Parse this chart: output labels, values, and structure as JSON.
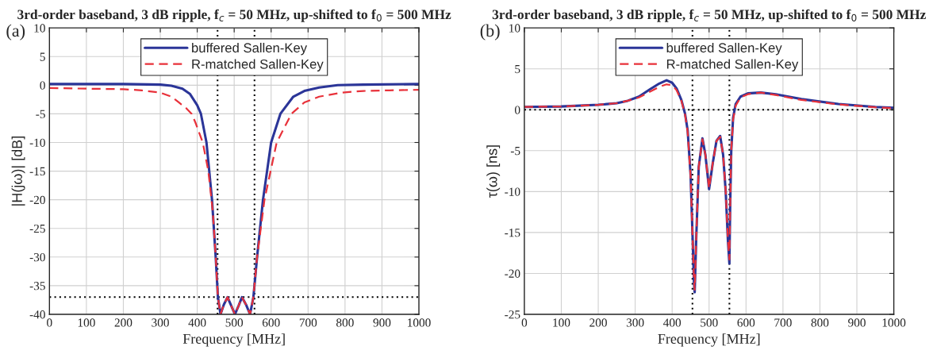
{
  "chart_data": [
    {
      "type": "line",
      "title": "3rd-order baseband, 3 dB ripple, f$_{c}$ = 50 MHz, up-shifted to f$_{0}$ = 500 MHz",
      "xlabel": "Frequency [MHz]",
      "ylabel": "|H(jω)| [dB]",
      "annotations": [
        "(a)"
      ],
      "xlim": [
        0,
        1000
      ],
      "xticks": [
        0,
        100,
        200,
        300,
        400,
        500,
        600,
        700,
        800,
        900,
        1000
      ],
      "ylim": [
        -40,
        10
      ],
      "yticks": [
        -40,
        -35,
        -30,
        -25,
        -20,
        -15,
        -10,
        -5,
        0,
        5,
        10
      ],
      "grid": true,
      "legend": "top",
      "ref_lines": [
        {
          "axis": "x",
          "value": 455,
          "color": "#000000",
          "line_style": "dotted"
        },
        {
          "axis": "x",
          "value": 555,
          "color": "#000000",
          "line_style": "dotted"
        },
        {
          "axis": "y",
          "value": -37,
          "color": "#000000",
          "line_style": "dotted"
        }
      ],
      "series": [
        {
          "name": "buffered Sallen-Key",
          "color": "#2b3598",
          "line_style": "solid",
          "x": [
            0,
            100,
            200,
            300,
            330,
            360,
            380,
            400,
            410,
            425,
            440,
            450,
            456,
            463,
            472,
            482,
            492,
            502,
            512,
            521,
            532,
            543,
            552,
            562,
            578,
            600,
            625,
            660,
            690,
            730,
            780,
            850,
            1000
          ],
          "values": [
            0.2,
            0.2,
            0.2,
            0.1,
            -0.1,
            -0.6,
            -1.5,
            -3.5,
            -5,
            -10,
            -20,
            -30,
            -37,
            -40,
            -38.3,
            -37,
            -38.5,
            -40,
            -38.5,
            -37,
            -38.3,
            -40,
            -37,
            -30,
            -20,
            -10,
            -5,
            -2,
            -1,
            -0.4,
            0,
            0.1,
            0.2
          ]
        },
        {
          "name": "R-matched Sallen-Key",
          "color": "#e8313a",
          "line_style": "dashed",
          "x": [
            0,
            100,
            200,
            250,
            300,
            330,
            350,
            370,
            385,
            395,
            415,
            430,
            442,
            450,
            456,
            463,
            472,
            482,
            492,
            502,
            512,
            521,
            532,
            543,
            552,
            562,
            582,
            615,
            655,
            690,
            730,
            790,
            850,
            920,
            1000
          ],
          "values": [
            -0.5,
            -0.6,
            -0.7,
            -0.9,
            -1.3,
            -2,
            -3,
            -4,
            -5,
            -6.5,
            -10,
            -15,
            -22,
            -30,
            -37,
            -40,
            -38.3,
            -37,
            -38.5,
            -40,
            -38.5,
            -37,
            -38.3,
            -40,
            -37,
            -30,
            -20,
            -10,
            -5,
            -3,
            -2,
            -1.3,
            -1,
            -0.9,
            -0.8
          ]
        }
      ]
    },
    {
      "type": "line",
      "title": "3rd-order baseband, 3 dB ripple, f$_{c}$ = 50 MHz, up-shifted to f$_{0}$ = 500 MHz",
      "xlabel": "Frequency [MHz]",
      "ylabel": "τ(ω) [ns]",
      "annotations": [
        "(b)"
      ],
      "xlim": [
        0,
        1000
      ],
      "xticks": [
        0,
        100,
        200,
        300,
        400,
        500,
        600,
        700,
        800,
        900,
        1000
      ],
      "ylim": [
        -25,
        10
      ],
      "yticks": [
        -25,
        -20,
        -15,
        -10,
        -5,
        0,
        5,
        10
      ],
      "grid": true,
      "legend": "top",
      "ref_lines": [
        {
          "axis": "x",
          "value": 455,
          "color": "#000000",
          "line_style": "dotted"
        },
        {
          "axis": "x",
          "value": 555,
          "color": "#000000",
          "line_style": "dotted"
        },
        {
          "axis": "y",
          "value": 0,
          "color": "#000000",
          "line_style": "dotted"
        }
      ],
      "series": [
        {
          "name": "buffered Sallen-Key",
          "color": "#2b3598",
          "line_style": "solid",
          "x": [
            0,
            100,
            200,
            250,
            280,
            310,
            340,
            365,
            385,
            400,
            412,
            425,
            435,
            442,
            450,
            455,
            459,
            461,
            465,
            472,
            482,
            490,
            500,
            510,
            520,
            530,
            538,
            545,
            551,
            555,
            557,
            560,
            565,
            572,
            585,
            605,
            640,
            680,
            750,
            850,
            950,
            1000
          ],
          "values": [
            0.35,
            0.4,
            0.6,
            0.8,
            1.1,
            1.6,
            2.5,
            3.2,
            3.6,
            3.3,
            2.6,
            1.2,
            -0.5,
            -2.5,
            -8,
            -15,
            -21,
            -22.3,
            -16,
            -7,
            -3.5,
            -5.5,
            -9.7,
            -6.5,
            -3.8,
            -3.2,
            -5.5,
            -10,
            -16,
            -18.8,
            -12,
            -5,
            -1,
            0.7,
            1.6,
            2,
            2.1,
            1.9,
            1.3,
            0.7,
            0.35,
            0.25
          ]
        },
        {
          "name": "R-matched Sallen-Key",
          "color": "#e8313a",
          "line_style": "dashed",
          "x": [
            0,
            100,
            200,
            250,
            280,
            310,
            340,
            365,
            385,
            400,
            412,
            425,
            435,
            442,
            450,
            455,
            459,
            461,
            465,
            472,
            482,
            490,
            500,
            510,
            520,
            530,
            538,
            545,
            551,
            555,
            557,
            560,
            565,
            572,
            585,
            605,
            640,
            680,
            750,
            850,
            950,
            1000
          ],
          "values": [
            0.35,
            0.4,
            0.6,
            0.8,
            1.1,
            1.5,
            2.2,
            2.8,
            3.1,
            3.0,
            2.4,
            1.1,
            -0.6,
            -2.7,
            -8.2,
            -15,
            -20.5,
            -22,
            -16,
            -7,
            -3.6,
            -5.5,
            -9.6,
            -6.5,
            -3.8,
            -3.3,
            -5.5,
            -10,
            -15.8,
            -18.3,
            -12,
            -5,
            -1.2,
            0.5,
            1.5,
            1.9,
            2.1,
            1.8,
            1.2,
            0.65,
            0.3,
            0.2
          ]
        }
      ]
    }
  ]
}
